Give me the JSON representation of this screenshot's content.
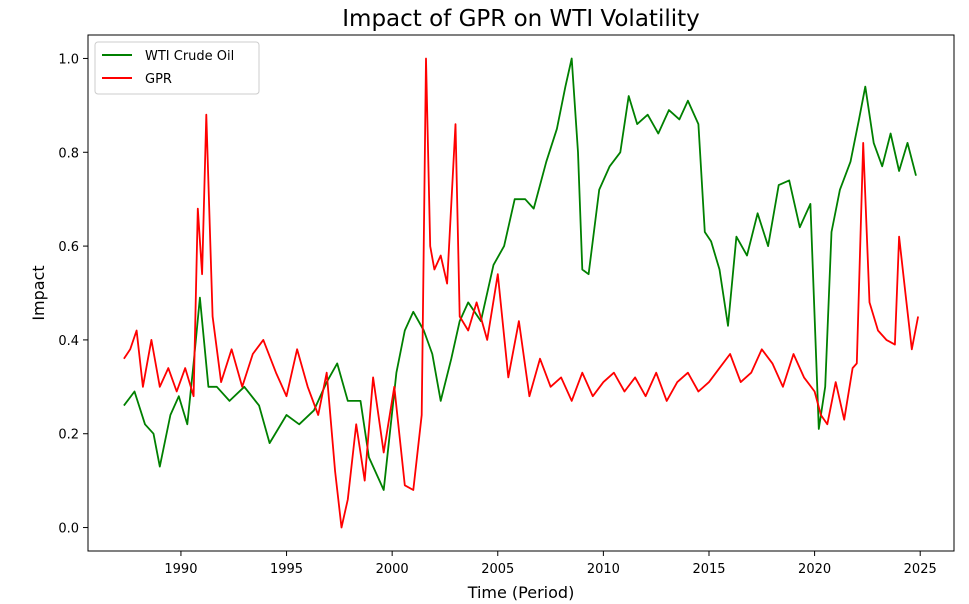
{
  "chart_data": {
    "type": "line",
    "title": "Impact of GPR on WTI Volatility",
    "xlabel": "Time (Period)",
    "ylabel": "Impact",
    "xlim": [
      1985.6,
      2026.6
    ],
    "ylim": [
      -0.05,
      1.05
    ],
    "xticks": [
      1990,
      1995,
      2000,
      2005,
      2010,
      2015,
      2020,
      2025
    ],
    "yticks": [
      0.0,
      0.2,
      0.4,
      0.6,
      0.8,
      1.0
    ],
    "ytick_labels": [
      "0.0",
      "0.2",
      "0.4",
      "0.6",
      "0.8",
      "1.0"
    ],
    "legend_position": "top-left",
    "grid": false,
    "series": [
      {
        "name": "WTI Crude Oil",
        "color": "#008000",
        "x": [
          1987.3,
          1987.8,
          1988.3,
          1988.7,
          1989.0,
          1989.5,
          1989.9,
          1990.3,
          1990.6,
          1990.9,
          1991.3,
          1991.7,
          1992.3,
          1993.0,
          1993.7,
          1994.2,
          1995.0,
          1995.6,
          1996.3,
          1996.9,
          1997.4,
          1997.9,
          1998.5,
          1998.9,
          1999.6,
          2000.2,
          2000.6,
          2001.0,
          2001.5,
          2001.9,
          2002.3,
          2002.8,
          2003.2,
          2003.6,
          2004.2,
          2004.8,
          2005.3,
          2005.8,
          2006.3,
          2006.7,
          2007.3,
          2007.8,
          2008.2,
          2008.5,
          2008.8,
          2009.0,
          2009.3,
          2009.8,
          2010.3,
          2010.8,
          2011.2,
          2011.6,
          2012.1,
          2012.6,
          2013.1,
          2013.6,
          2014.0,
          2014.5,
          2014.8,
          2015.1,
          2015.5,
          2015.9,
          2016.3,
          2016.8,
          2017.3,
          2017.8,
          2018.3,
          2018.8,
          2019.3,
          2019.8,
          2020.2,
          2020.5,
          2020.8,
          2021.2,
          2021.7,
          2022.1,
          2022.4,
          2022.8,
          2023.2,
          2023.6,
          2024.0,
          2024.4,
          2024.8
        ],
        "values": [
          0.26,
          0.29,
          0.22,
          0.2,
          0.13,
          0.24,
          0.28,
          0.22,
          0.35,
          0.49,
          0.3,
          0.3,
          0.27,
          0.3,
          0.26,
          0.18,
          0.24,
          0.22,
          0.25,
          0.31,
          0.35,
          0.27,
          0.27,
          0.15,
          0.08,
          0.33,
          0.42,
          0.46,
          0.42,
          0.37,
          0.27,
          0.36,
          0.44,
          0.48,
          0.44,
          0.56,
          0.6,
          0.7,
          0.7,
          0.68,
          0.78,
          0.85,
          0.94,
          1.0,
          0.8,
          0.55,
          0.54,
          0.72,
          0.77,
          0.8,
          0.92,
          0.86,
          0.88,
          0.84,
          0.89,
          0.87,
          0.91,
          0.86,
          0.63,
          0.61,
          0.55,
          0.43,
          0.62,
          0.58,
          0.67,
          0.6,
          0.73,
          0.74,
          0.64,
          0.69,
          0.21,
          0.3,
          0.63,
          0.72,
          0.78,
          0.87,
          0.94,
          0.82,
          0.77,
          0.84,
          0.76,
          0.82,
          0.75
        ]
      },
      {
        "name": "GPR",
        "color": "#ff0000",
        "x": [
          1987.3,
          1987.6,
          1987.9,
          1988.2,
          1988.6,
          1989.0,
          1989.4,
          1989.8,
          1990.2,
          1990.6,
          1990.8,
          1991.0,
          1991.2,
          1991.5,
          1991.9,
          1992.4,
          1992.9,
          1993.4,
          1993.9,
          1994.5,
          1995.0,
          1995.5,
          1996.0,
          1996.5,
          1996.9,
          1997.3,
          1997.6,
          1997.9,
          1998.3,
          1998.7,
          1999.1,
          1999.6,
          2000.1,
          2000.6,
          2001.0,
          2001.4,
          2001.6,
          2001.8,
          2002.0,
          2002.3,
          2002.6,
          2003.0,
          2003.2,
          2003.6,
          2004.0,
          2004.5,
          2005.0,
          2005.5,
          2006.0,
          2006.5,
          2007.0,
          2007.5,
          2008.0,
          2008.5,
          2009.0,
          2009.5,
          2010.0,
          2010.5,
          2011.0,
          2011.5,
          2012.0,
          2012.5,
          2013.0,
          2013.5,
          2014.0,
          2014.5,
          2015.0,
          2015.5,
          2016.0,
          2016.5,
          2017.0,
          2017.5,
          2018.0,
          2018.5,
          2019.0,
          2019.5,
          2020.0,
          2020.3,
          2020.6,
          2021.0,
          2021.4,
          2021.8,
          2022.0,
          2022.3,
          2022.6,
          2023.0,
          2023.4,
          2023.8,
          2024.0,
          2024.3,
          2024.6,
          2024.9
        ],
        "values": [
          0.36,
          0.38,
          0.42,
          0.3,
          0.4,
          0.3,
          0.34,
          0.29,
          0.34,
          0.28,
          0.68,
          0.54,
          0.88,
          0.45,
          0.31,
          0.38,
          0.3,
          0.37,
          0.4,
          0.33,
          0.28,
          0.38,
          0.3,
          0.24,
          0.33,
          0.12,
          0.0,
          0.06,
          0.22,
          0.1,
          0.32,
          0.16,
          0.3,
          0.09,
          0.08,
          0.24,
          1.0,
          0.6,
          0.55,
          0.58,
          0.52,
          0.86,
          0.45,
          0.42,
          0.48,
          0.4,
          0.54,
          0.32,
          0.44,
          0.28,
          0.36,
          0.3,
          0.32,
          0.27,
          0.33,
          0.28,
          0.31,
          0.33,
          0.29,
          0.32,
          0.28,
          0.33,
          0.27,
          0.31,
          0.33,
          0.29,
          0.31,
          0.34,
          0.37,
          0.31,
          0.33,
          0.38,
          0.35,
          0.3,
          0.37,
          0.32,
          0.29,
          0.24,
          0.22,
          0.31,
          0.23,
          0.34,
          0.35,
          0.82,
          0.48,
          0.42,
          0.4,
          0.39,
          0.62,
          0.5,
          0.38,
          0.45
        ]
      }
    ]
  }
}
